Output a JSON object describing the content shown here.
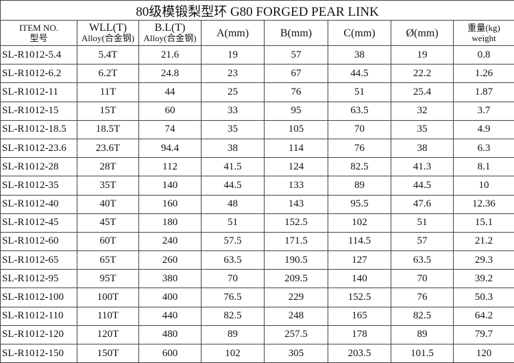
{
  "title": "80级模锻梨型环 G80 FORGED PEAR LINK",
  "headers": {
    "item": [
      "ITEM NO.",
      "型号"
    ],
    "wll": [
      "WLL(T)",
      "Alloy(合金钢)"
    ],
    "bl": [
      "B.L(T)",
      "Alloy(合金钢)"
    ],
    "a": "A(mm)",
    "b": "B(mm)",
    "c": "C(mm)",
    "d": "Ø(mm)",
    "weight": [
      "重量(kg)",
      "weight"
    ]
  },
  "rows": [
    [
      "SL-R1012-5.4",
      "5.4T",
      "21.6",
      "19",
      "57",
      "38",
      "19",
      "0.8"
    ],
    [
      "SL-R1012-6.2",
      "6.2T",
      "24.8",
      "23",
      "67",
      "44.5",
      "22.2",
      "1.26"
    ],
    [
      "SL-R1012-11",
      "11T",
      "44",
      "25",
      "76",
      "51",
      "25.4",
      "1.87"
    ],
    [
      "SL-R1012-15",
      "15T",
      "60",
      "33",
      "95",
      "63.5",
      "32",
      "3.7"
    ],
    [
      "SL-R1012-18.5",
      "18.5T",
      "74",
      "35",
      "105",
      "70",
      "35",
      "4.9"
    ],
    [
      "SL-R1012-23.6",
      "23.6T",
      "94.4",
      "38",
      "114",
      "76",
      "38",
      "6.3"
    ],
    [
      "SL-R1012-28",
      "28T",
      "112",
      "41.5",
      "124",
      "82.5",
      "41.3",
      "8.1"
    ],
    [
      "SL-R1012-35",
      "35T",
      "140",
      "44.5",
      "133",
      "89",
      "44.5",
      "10"
    ],
    [
      "SL-R1012-40",
      "40T",
      "160",
      "48",
      "143",
      "95.5",
      "47.6",
      "12.36"
    ],
    [
      "SL-R1012-45",
      "45T",
      "180",
      "51",
      "152.5",
      "102",
      "51",
      "15.1"
    ],
    [
      "SL-R1012-60",
      "60T",
      "240",
      "57.5",
      "171.5",
      "114.5",
      "57",
      "21.2"
    ],
    [
      "SL-R1012-65",
      "65T",
      "260",
      "63.5",
      "190.5",
      "127",
      "63.5",
      "29.3"
    ],
    [
      "SL-R1012-95",
      "95T",
      "380",
      "70",
      "209.5",
      "140",
      "70",
      "39.2"
    ],
    [
      "SL-R1012-100",
      "100T",
      "400",
      "76.5",
      "229",
      "152.5",
      "76",
      "50.3"
    ],
    [
      "SL-R1012-110",
      "110T",
      "440",
      "82.5",
      "248",
      "165",
      "82.5",
      "64.2"
    ],
    [
      "SL-R1012-120",
      "120T",
      "480",
      "89",
      "257.5",
      "178",
      "89",
      "79.7"
    ],
    [
      "SL-R1012-150",
      "150T",
      "600",
      "102",
      "305",
      "203.5",
      "101.5",
      "120"
    ]
  ]
}
